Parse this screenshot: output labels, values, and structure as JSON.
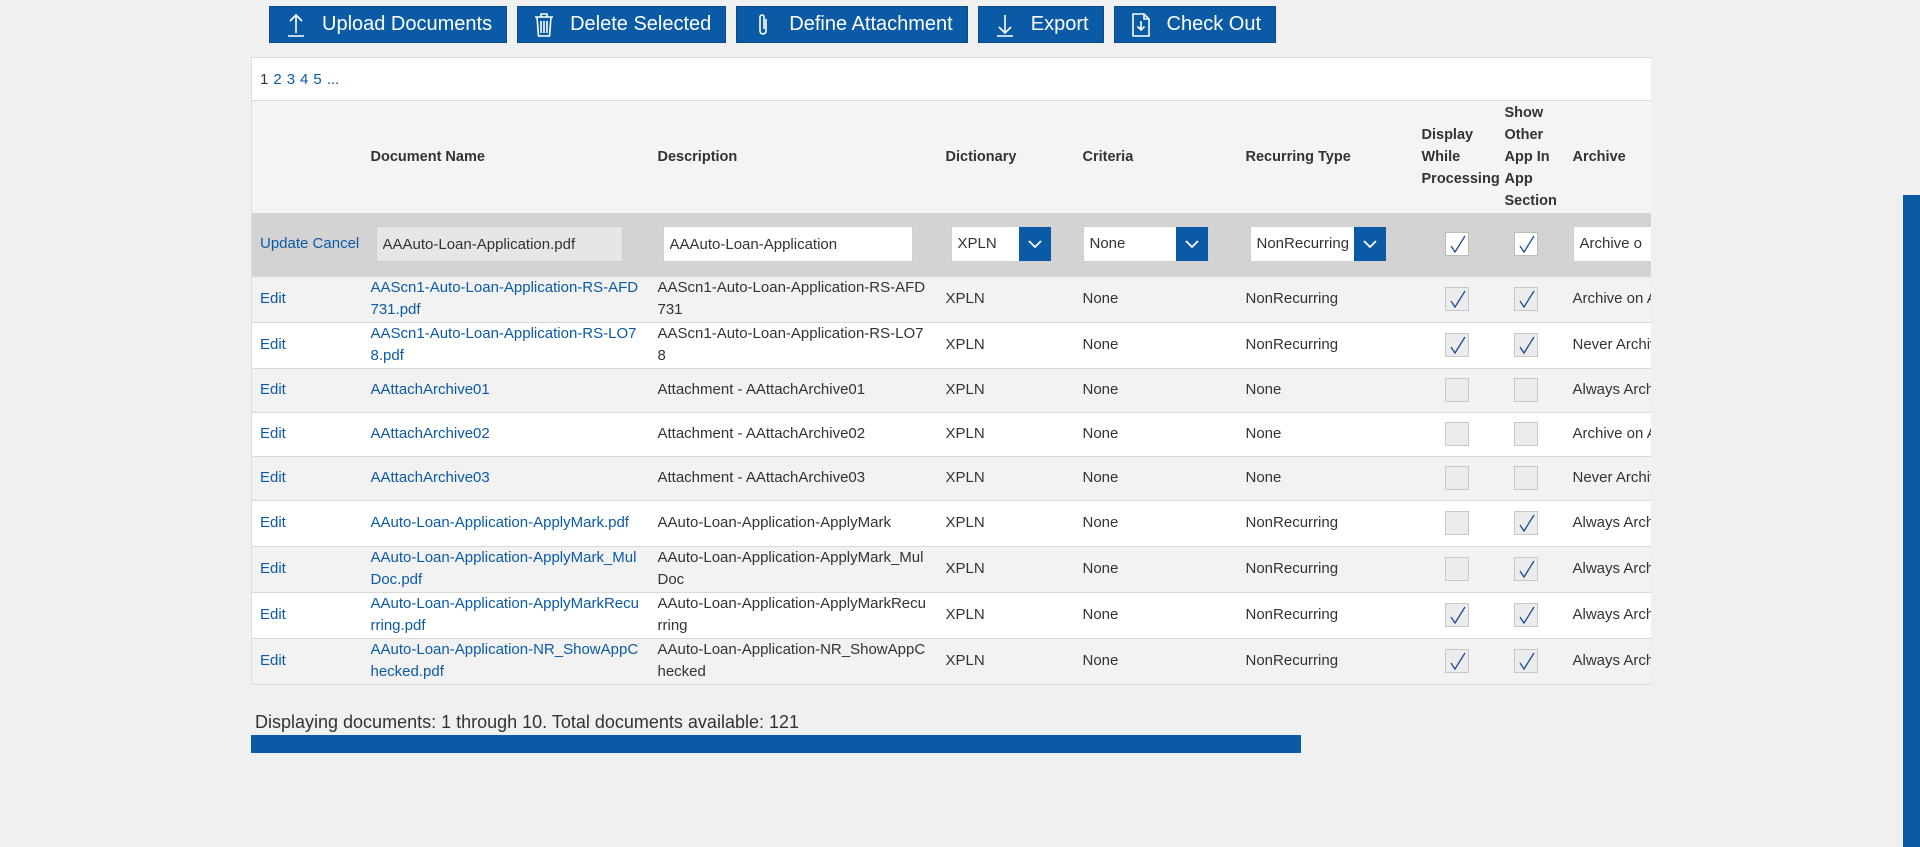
{
  "toolbar": {
    "buttons": [
      {
        "label": "Upload Documents",
        "icon": "upload-icon"
      },
      {
        "label": "Delete Selected",
        "icon": "trash-icon"
      },
      {
        "label": "Define Attachment",
        "icon": "paperclip-icon"
      },
      {
        "label": "Export",
        "icon": "download-icon"
      },
      {
        "label": "Check Out",
        "icon": "checkout-document-icon"
      }
    ]
  },
  "pager": {
    "pages": [
      "1",
      "2",
      "3",
      "4",
      "5",
      "..."
    ],
    "current": "1"
  },
  "columns": [
    "",
    "Document Name",
    "Description",
    "Dictionary",
    "Criteria",
    "Recurring Type",
    "Display While Processing",
    "Show Other App In App Section",
    "Archive"
  ],
  "edit_row": {
    "update_label": "Update",
    "cancel_label": "Cancel",
    "document_name": "AAAuto-Loan-Application.pdf",
    "description": "AAAuto-Loan-Application",
    "dictionary": "XPLN",
    "criteria": "None",
    "recurring_type": "NonRecurring",
    "display_while_processing": true,
    "show_other_app": true,
    "archive": "Archive o"
  },
  "rows": [
    {
      "action": "Edit",
      "name": "AAScn1-Auto-Loan-Application-RS-AFD731.pdf",
      "description": "AAScn1-Auto-Loan-Application-RS-AFD731",
      "dictionary": "XPLN",
      "criteria": "None",
      "recurring": "NonRecurring",
      "display": true,
      "show": true,
      "archive": "Archive on A"
    },
    {
      "action": "Edit",
      "name": "AAScn1-Auto-Loan-Application-RS-LO78.pdf",
      "description": "AAScn1-Auto-Loan-Application-RS-LO78",
      "dictionary": "XPLN",
      "criteria": "None",
      "recurring": "NonRecurring",
      "display": true,
      "show": true,
      "archive": "Never Archiv"
    },
    {
      "action": "Edit",
      "name": "AAttachArchive01",
      "description": "Attachment - AAttachArchive01",
      "dictionary": "XPLN",
      "criteria": "None",
      "recurring": "None",
      "display": false,
      "show": false,
      "archive": "Always Arch"
    },
    {
      "action": "Edit",
      "name": "AAttachArchive02",
      "description": "Attachment - AAttachArchive02",
      "dictionary": "XPLN",
      "criteria": "None",
      "recurring": "None",
      "display": false,
      "show": false,
      "archive": "Archive on A"
    },
    {
      "action": "Edit",
      "name": "AAttachArchive03",
      "description": "Attachment - AAttachArchive03",
      "dictionary": "XPLN",
      "criteria": "None",
      "recurring": "None",
      "display": false,
      "show": false,
      "archive": "Never Archiv"
    },
    {
      "action": "Edit",
      "name": "AAuto-Loan-Application-ApplyMark.pdf",
      "description": "AAuto-Loan-Application-ApplyMark",
      "dictionary": "XPLN",
      "criteria": "None",
      "recurring": "NonRecurring",
      "display": false,
      "show": true,
      "archive": "Always Arch"
    },
    {
      "action": "Edit",
      "name": "AAuto-Loan-Application-ApplyMark_MulDoc.pdf",
      "description": "AAuto-Loan-Application-ApplyMark_MulDoc",
      "dictionary": "XPLN",
      "criteria": "None",
      "recurring": "NonRecurring",
      "display": false,
      "show": true,
      "archive": "Always Arch"
    },
    {
      "action": "Edit",
      "name": "AAuto-Loan-Application-ApplyMarkRecurring.pdf",
      "description": "AAuto-Loan-Application-ApplyMarkRecurring",
      "dictionary": "XPLN",
      "criteria": "None",
      "recurring": "NonRecurring",
      "display": true,
      "show": true,
      "archive": "Always Arch"
    },
    {
      "action": "Edit",
      "name": "AAuto-Loan-Application-NR_ShowAppChecked.pdf",
      "description": "AAuto-Loan-Application-NR_ShowAppChecked",
      "dictionary": "XPLN",
      "criteria": "None",
      "recurring": "NonRecurring",
      "display": true,
      "show": true,
      "archive": "Always Arch"
    }
  ],
  "footer": {
    "status": "Displaying documents: 1 through 10. Total documents available: 121"
  },
  "colors": {
    "accent": "#0b5aa6",
    "edit_row": "#d3d3d3",
    "background": "#f0f0f0"
  }
}
